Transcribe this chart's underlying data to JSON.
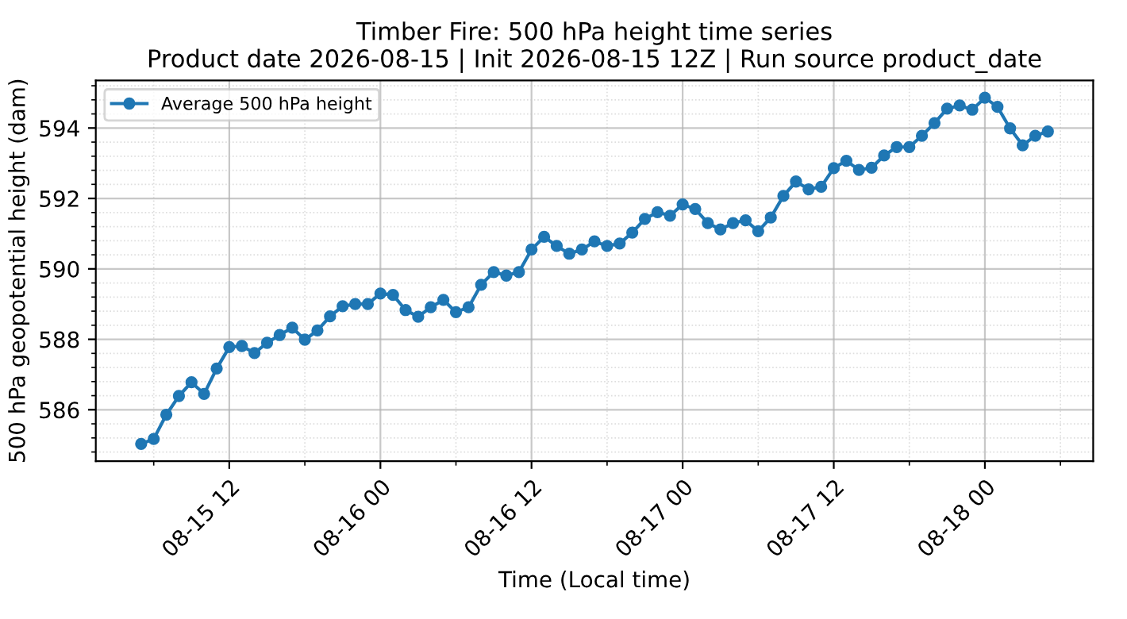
{
  "chart_data": {
    "type": "line",
    "title": "Timber Fire: 500 hPa height time series\nProduct date 2026-08-15 | Init 2026-08-15 12Z | Run source product_date",
    "xlabel": "Time (Local time)",
    "ylabel": "500 hPa geopotential height (dam)",
    "x": [
      "2026-08-15T05:00",
      "2026-08-15T06:00",
      "2026-08-15T07:00",
      "2026-08-15T08:00",
      "2026-08-15T09:00",
      "2026-08-15T10:00",
      "2026-08-15T11:00",
      "2026-08-15T12:00",
      "2026-08-15T13:00",
      "2026-08-15T14:00",
      "2026-08-15T15:00",
      "2026-08-15T16:00",
      "2026-08-15T17:00",
      "2026-08-15T18:00",
      "2026-08-15T19:00",
      "2026-08-15T20:00",
      "2026-08-15T21:00",
      "2026-08-15T22:00",
      "2026-08-15T23:00",
      "2026-08-16T00:00",
      "2026-08-16T01:00",
      "2026-08-16T02:00",
      "2026-08-16T03:00",
      "2026-08-16T04:00",
      "2026-08-16T05:00",
      "2026-08-16T06:00",
      "2026-08-16T07:00",
      "2026-08-16T08:00",
      "2026-08-16T09:00",
      "2026-08-16T10:00",
      "2026-08-16T11:00",
      "2026-08-16T12:00",
      "2026-08-16T13:00",
      "2026-08-16T14:00",
      "2026-08-16T15:00",
      "2026-08-16T16:00",
      "2026-08-16T17:00",
      "2026-08-16T18:00",
      "2026-08-16T19:00",
      "2026-08-16T20:00",
      "2026-08-16T21:00",
      "2026-08-16T22:00",
      "2026-08-16T23:00",
      "2026-08-17T00:00",
      "2026-08-17T01:00",
      "2026-08-17T02:00",
      "2026-08-17T03:00",
      "2026-08-17T04:00",
      "2026-08-17T05:00",
      "2026-08-17T06:00",
      "2026-08-17T07:00",
      "2026-08-17T08:00",
      "2026-08-17T09:00",
      "2026-08-17T10:00",
      "2026-08-17T11:00",
      "2026-08-17T12:00",
      "2026-08-17T13:00",
      "2026-08-17T14:00",
      "2026-08-17T15:00",
      "2026-08-17T16:00",
      "2026-08-17T17:00",
      "2026-08-17T18:00",
      "2026-08-17T19:00",
      "2026-08-17T20:00",
      "2026-08-17T21:00",
      "2026-08-17T22:00",
      "2026-08-17T23:00",
      "2026-08-18T00:00",
      "2026-08-18T01:00",
      "2026-08-18T02:00",
      "2026-08-18T03:00",
      "2026-08-18T04:00",
      "2026-08-18T05:00"
    ],
    "series": [
      {
        "name": "Average 500 hPa height",
        "color": "#1f77b4",
        "values": [
          585.03,
          585.17,
          585.86,
          586.39,
          586.78,
          586.45,
          587.17,
          587.78,
          587.81,
          587.61,
          587.9,
          588.12,
          588.33,
          587.99,
          588.25,
          588.65,
          588.94,
          589.0,
          589.0,
          589.3,
          589.26,
          588.83,
          588.64,
          588.91,
          589.12,
          588.77,
          588.91,
          589.55,
          589.91,
          589.81,
          589.91,
          590.55,
          590.91,
          590.65,
          590.43,
          590.55,
          590.78,
          590.65,
          590.72,
          591.03,
          591.42,
          591.61,
          591.51,
          591.83,
          591.7,
          591.3,
          591.12,
          591.3,
          591.38,
          591.07,
          591.46,
          592.07,
          592.48,
          592.26,
          592.33,
          592.86,
          593.07,
          592.81,
          592.87,
          593.22,
          593.46,
          593.46,
          593.78,
          594.14,
          594.55,
          594.64,
          594.52,
          594.86,
          594.6,
          593.99,
          593.51,
          593.78,
          593.9
        ]
      }
    ],
    "xlim": [
      "2026-08-15T01:24",
      "2026-08-18T08:36"
    ],
    "xticks": [
      {
        "value": "2026-08-15T12:00",
        "label": "08-15 12"
      },
      {
        "value": "2026-08-16T00:00",
        "label": "08-16 00"
      },
      {
        "value": "2026-08-16T12:00",
        "label": "08-16 12"
      },
      {
        "value": "2026-08-17T00:00",
        "label": "08-17 00"
      },
      {
        "value": "2026-08-17T12:00",
        "label": "08-17 12"
      },
      {
        "value": "2026-08-18T00:00",
        "label": "08-18 00"
      }
    ],
    "ylim": [
      584.54,
      595.35
    ],
    "yticks": [
      586,
      588,
      590,
      592,
      594
    ],
    "grid": true,
    "legend": "top left",
    "marker": "circle",
    "line_style": "solid"
  }
}
